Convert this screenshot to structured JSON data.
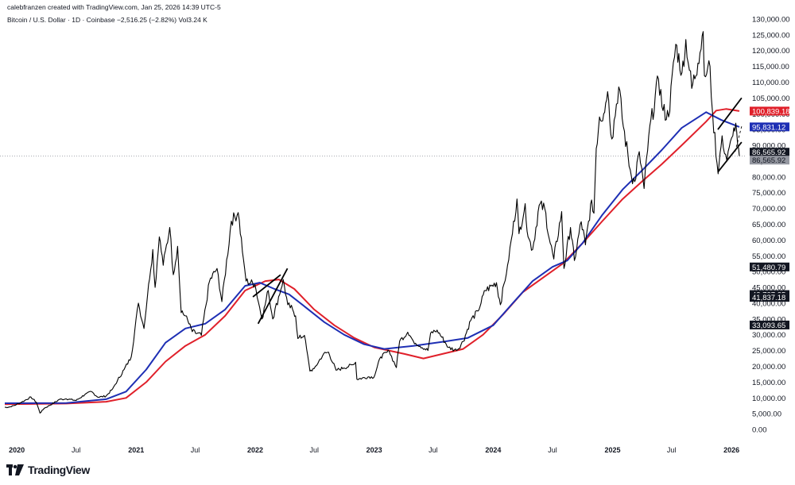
{
  "header": {
    "credit": "calebfranzen created with TradingView.com, Jan 25, 2026 14:39 UTC-5",
    "symbol_line": "Bitcoin / U.S. Dollar · 1D · Coinbase  −2,516.25 (−2.82%)  Vol3.24 K"
  },
  "footer": {
    "brand": "TradingView"
  },
  "colors": {
    "price": "#000000",
    "ma_blue": "#1e2fb4",
    "ma_red": "#e0202a",
    "tag_black": "#131722",
    "tag_gray": "#9598a1",
    "grid_dotted": "#9598a1"
  },
  "chart_data": {
    "type": "line",
    "y_axis": {
      "scale": "linear",
      "range": [
        -3000,
        133000
      ],
      "ticks": [
        "0.00",
        "5,000.00",
        "10,000.00",
        "15,000.00",
        "20,000.00",
        "25,000.00",
        "30,000.00",
        "35,000.00",
        "40,000.00",
        "45,000.00",
        "50,000.00",
        "55,000.00",
        "60,000.00",
        "65,000.00",
        "70,000.00",
        "75,000.00",
        "80,000.00",
        "85,000.00",
        "90,000.00",
        "95,000.00",
        "100,000.00",
        "105,000.00",
        "110,000.00",
        "115,000.00",
        "120,000.00",
        "125,000.00",
        "130,000.00"
      ]
    },
    "x_axis": {
      "range": [
        "2019-11-25",
        "2026-01-25"
      ],
      "ticks": [
        {
          "date": "2020-01-01",
          "label": "2020",
          "year": true
        },
        {
          "date": "2020-07-01",
          "label": "Jul",
          "year": false
        },
        {
          "date": "2021-01-01",
          "label": "2021",
          "year": true
        },
        {
          "date": "2021-07-01",
          "label": "Jul",
          "year": false
        },
        {
          "date": "2022-01-01",
          "label": "2022",
          "year": true
        },
        {
          "date": "2022-07-01",
          "label": "Jul",
          "year": false
        },
        {
          "date": "2023-01-01",
          "label": "2023",
          "year": true
        },
        {
          "date": "2023-07-01",
          "label": "Jul",
          "year": false
        },
        {
          "date": "2024-01-01",
          "label": "2024",
          "year": true
        },
        {
          "date": "2024-07-01",
          "label": "Jul",
          "year": false
        },
        {
          "date": "2025-01-01",
          "label": "2025",
          "year": true
        },
        {
          "date": "2025-07-01",
          "label": "Jul",
          "year": false
        },
        {
          "date": "2026-01-01",
          "label": "2026",
          "year": true
        }
      ]
    },
    "series": [
      {
        "key": "price",
        "points": [
          [
            "2019-11-25",
            7000
          ],
          [
            "2019-12-15",
            7200
          ],
          [
            "2020-01-15",
            8600
          ],
          [
            "2020-02-13",
            10300
          ],
          [
            "2020-03-01",
            8600
          ],
          [
            "2020-03-12",
            5200
          ],
          [
            "2020-03-25",
            6700
          ],
          [
            "2020-04-30",
            8800
          ],
          [
            "2020-05-10",
            9500
          ],
          [
            "2020-06-01",
            9700
          ],
          [
            "2020-07-01",
            9200
          ],
          [
            "2020-07-27",
            11000
          ],
          [
            "2020-08-17",
            12000
          ],
          [
            "2020-09-06",
            10200
          ],
          [
            "2020-10-01",
            10600
          ],
          [
            "2020-10-21",
            12900
          ],
          [
            "2020-11-05",
            15600
          ],
          [
            "2020-11-25",
            19000
          ],
          [
            "2020-12-17",
            23000
          ],
          [
            "2021-01-08",
            40000
          ],
          [
            "2021-01-25",
            32000
          ],
          [
            "2021-02-08",
            46000
          ],
          [
            "2021-02-21",
            57000
          ],
          [
            "2021-02-28",
            45000
          ],
          [
            "2021-03-13",
            61000
          ],
          [
            "2021-03-25",
            52000
          ],
          [
            "2021-04-14",
            64000
          ],
          [
            "2021-04-25",
            49000
          ],
          [
            "2021-05-08",
            58000
          ],
          [
            "2021-05-19",
            37000
          ],
          [
            "2021-06-01",
            36000
          ],
          [
            "2021-06-22",
            31000
          ],
          [
            "2021-07-20",
            29800
          ],
          [
            "2021-08-14",
            47000
          ],
          [
            "2021-09-06",
            51000
          ],
          [
            "2021-09-21",
            40500
          ],
          [
            "2021-10-20",
            66000
          ],
          [
            "2021-11-10",
            68700
          ],
          [
            "2021-11-26",
            54000
          ],
          [
            "2021-12-04",
            47000
          ],
          [
            "2021-12-31",
            46000
          ],
          [
            "2022-01-22",
            35000
          ],
          [
            "2022-02-10",
            44000
          ],
          [
            "2022-02-24",
            35000
          ],
          [
            "2022-03-28",
            47500
          ],
          [
            "2022-04-11",
            39500
          ],
          [
            "2022-04-26",
            38000
          ],
          [
            "2022-05-05",
            36000
          ],
          [
            "2022-05-12",
            28800
          ],
          [
            "2022-06-01",
            29800
          ],
          [
            "2022-06-18",
            18500
          ],
          [
            "2022-07-01",
            19300
          ],
          [
            "2022-07-30",
            24000
          ],
          [
            "2022-08-14",
            24500
          ],
          [
            "2022-09-06",
            18800
          ],
          [
            "2022-09-30",
            19500
          ],
          [
            "2022-10-31",
            20600
          ],
          [
            "2022-11-05",
            21300
          ],
          [
            "2022-11-09",
            15900
          ],
          [
            "2022-12-16",
            16700
          ],
          [
            "2022-12-31",
            16500
          ],
          [
            "2023-01-21",
            23000
          ],
          [
            "2023-02-16",
            24800
          ],
          [
            "2023-03-10",
            19600
          ],
          [
            "2023-03-20",
            28000
          ],
          [
            "2023-04-14",
            30800
          ],
          [
            "2023-05-01",
            28000
          ],
          [
            "2023-06-15",
            25000
          ],
          [
            "2023-06-23",
            30500
          ],
          [
            "2023-07-13",
            31500
          ],
          [
            "2023-08-17",
            26000
          ],
          [
            "2023-09-11",
            25000
          ],
          [
            "2023-10-01",
            27900
          ],
          [
            "2023-10-24",
            34500
          ],
          [
            "2023-11-15",
            37500
          ],
          [
            "2023-12-08",
            44000
          ],
          [
            "2024-01-11",
            46500
          ],
          [
            "2024-01-23",
            39500
          ],
          [
            "2024-02-14",
            52000
          ],
          [
            "2024-02-29",
            62000
          ],
          [
            "2024-03-14",
            73000
          ],
          [
            "2024-03-20",
            62000
          ],
          [
            "2024-04-08",
            71500
          ],
          [
            "2024-04-17",
            61000
          ],
          [
            "2024-05-01",
            57000
          ],
          [
            "2024-05-21",
            71000
          ],
          [
            "2024-06-07",
            70000
          ],
          [
            "2024-06-24",
            59000
          ],
          [
            "2024-07-05",
            54000
          ],
          [
            "2024-07-29",
            69000
          ],
          [
            "2024-08-05",
            51000
          ],
          [
            "2024-08-25",
            64000
          ],
          [
            "2024-09-06",
            53500
          ],
          [
            "2024-09-27",
            65800
          ],
          [
            "2024-10-10",
            58500
          ],
          [
            "2024-10-29",
            72700
          ],
          [
            "2024-11-05",
            68500
          ],
          [
            "2024-11-12",
            89000
          ],
          [
            "2024-11-22",
            99000
          ],
          [
            "2024-12-05",
            100000
          ],
          [
            "2024-12-17",
            107000
          ],
          [
            "2024-12-30",
            92000
          ],
          [
            "2025-01-20",
            108500
          ],
          [
            "2025-02-03",
            96000
          ],
          [
            "2025-02-28",
            80000
          ],
          [
            "2025-03-10",
            78500
          ],
          [
            "2025-03-24",
            88000
          ],
          [
            "2025-04-08",
            76300
          ],
          [
            "2025-04-22",
            93000
          ],
          [
            "2025-05-22",
            111000
          ],
          [
            "2025-06-05",
            101000
          ],
          [
            "2025-06-22",
            99000
          ],
          [
            "2025-07-14",
            122000
          ],
          [
            "2025-08-02",
            113000
          ],
          [
            "2025-08-14",
            123500
          ],
          [
            "2025-09-01",
            108000
          ],
          [
            "2025-09-20",
            116000
          ],
          [
            "2025-10-06",
            126000
          ],
          [
            "2025-10-10",
            112000
          ],
          [
            "2025-10-27",
            115000
          ],
          [
            "2025-11-04",
            100000
          ],
          [
            "2025-11-21",
            81000
          ],
          [
            "2025-12-03",
            93000
          ],
          [
            "2025-12-18",
            85000
          ],
          [
            "2026-01-05",
            93000
          ],
          [
            "2026-01-14",
            97000
          ],
          [
            "2026-01-20",
            90000
          ],
          [
            "2026-01-25",
            86600
          ]
        ]
      },
      {
        "key": "ma_blue",
        "points": [
          [
            "2019-11-25",
            8300
          ],
          [
            "2020-06-01",
            8400
          ],
          [
            "2020-10-01",
            9600
          ],
          [
            "2020-12-01",
            12000
          ],
          [
            "2021-02-01",
            19000
          ],
          [
            "2021-04-01",
            27500
          ],
          [
            "2021-06-01",
            32000
          ],
          [
            "2021-08-01",
            33500
          ],
          [
            "2021-10-01",
            38000
          ],
          [
            "2021-12-01",
            45500
          ],
          [
            "2022-01-15",
            46500
          ],
          [
            "2022-03-01",
            44500
          ],
          [
            "2022-04-15",
            42800
          ],
          [
            "2022-06-01",
            39000
          ],
          [
            "2022-08-01",
            34000
          ],
          [
            "2022-10-01",
            30000
          ],
          [
            "2022-12-01",
            27000
          ],
          [
            "2023-02-01",
            25500
          ],
          [
            "2023-05-01",
            26500
          ],
          [
            "2023-08-01",
            27800
          ],
          [
            "2023-10-15",
            29000
          ],
          [
            "2024-01-01",
            33000
          ],
          [
            "2024-03-01",
            40000
          ],
          [
            "2024-05-01",
            47000
          ],
          [
            "2024-07-01",
            51500
          ],
          [
            "2024-08-15",
            53500
          ],
          [
            "2024-10-01",
            59000
          ],
          [
            "2024-12-01",
            68000
          ],
          [
            "2025-02-01",
            76000
          ],
          [
            "2025-04-01",
            82000
          ],
          [
            "2025-06-01",
            88500
          ],
          [
            "2025-08-01",
            95500
          ],
          [
            "2025-10-15",
            100500
          ],
          [
            "2025-12-01",
            98000
          ],
          [
            "2026-01-25",
            95831
          ]
        ]
      },
      {
        "key": "ma_red",
        "points": [
          [
            "2019-11-25",
            8000
          ],
          [
            "2020-06-01",
            8200
          ],
          [
            "2020-10-01",
            8800
          ],
          [
            "2020-12-01",
            10000
          ],
          [
            "2021-02-01",
            15000
          ],
          [
            "2021-04-01",
            21500
          ],
          [
            "2021-06-01",
            26500
          ],
          [
            "2021-08-01",
            30000
          ],
          [
            "2021-10-01",
            36000
          ],
          [
            "2021-12-01",
            44000
          ],
          [
            "2022-02-01",
            47000
          ],
          [
            "2022-03-15",
            47500
          ],
          [
            "2022-05-01",
            44500
          ],
          [
            "2022-07-01",
            38000
          ],
          [
            "2022-09-01",
            33000
          ],
          [
            "2022-11-01",
            29000
          ],
          [
            "2023-01-01",
            26000
          ],
          [
            "2023-04-01",
            24000
          ],
          [
            "2023-06-01",
            22500
          ],
          [
            "2023-08-01",
            24000
          ],
          [
            "2023-10-01",
            25500
          ],
          [
            "2023-12-01",
            30000
          ],
          [
            "2024-02-01",
            36500
          ],
          [
            "2024-04-01",
            43500
          ],
          [
            "2024-06-01",
            48000
          ],
          [
            "2024-08-01",
            52500
          ],
          [
            "2024-10-01",
            59000
          ],
          [
            "2024-12-01",
            66000
          ],
          [
            "2025-02-01",
            73000
          ],
          [
            "2025-04-01",
            78500
          ],
          [
            "2025-06-01",
            84000
          ],
          [
            "2025-08-01",
            90000
          ],
          [
            "2025-10-15",
            97500
          ],
          [
            "2025-11-15",
            101000
          ],
          [
            "2025-12-15",
            101500
          ],
          [
            "2026-01-25",
            100839
          ]
        ]
      }
    ],
    "trendlines": [
      {
        "from": [
          "2022-01-10",
          33500
        ],
        "to": [
          "2022-04-10",
          51000
        ]
      },
      {
        "from": [
          "2021-12-25",
          42000
        ],
        "to": [
          "2022-03-20",
          49000
        ]
      },
      {
        "from": [
          "2025-11-20",
          95000
        ],
        "to": [
          "2026-02-01",
          105000
        ]
      },
      {
        "from": [
          "2025-11-20",
          81500
        ],
        "to": [
          "2026-02-01",
          91000
        ]
      }
    ],
    "dashed_lines": [
      {
        "from": [
          "2026-01-12",
          88000
        ],
        "to": [
          "2026-02-01",
          96000
        ]
      }
    ],
    "hline": 86565.92,
    "price_tags": [
      {
        "value": 100839.18,
        "label": "100,839.18",
        "bg": "#e0202a",
        "fg": "#ffffff"
      },
      {
        "value": 95831.12,
        "label": "95,831.12",
        "bg": "#1e2fb4",
        "fg": "#ffffff"
      },
      {
        "value": 86565.92,
        "label": "86,565.92",
        "bg": "#131722",
        "fg": "#ffffff",
        "nudge": -5
      },
      {
        "value": 86565.92,
        "label": "86,565.92",
        "bg": "#9598a1",
        "fg": "#131722",
        "nudge": 5
      },
      {
        "value": 51480.79,
        "label": "51,480.79",
        "bg": "#131722",
        "fg": "#ffffff"
      },
      {
        "value": 42737.25,
        "label": "42,737.25",
        "bg": "#131722",
        "fg": "#ffffff"
      },
      {
        "value": 41837.18,
        "label": "41,837.18",
        "bg": "#131722",
        "fg": "#ffffff"
      },
      {
        "value": 33093.65,
        "label": "33,093.65",
        "bg": "#131722",
        "fg": "#ffffff"
      }
    ]
  }
}
